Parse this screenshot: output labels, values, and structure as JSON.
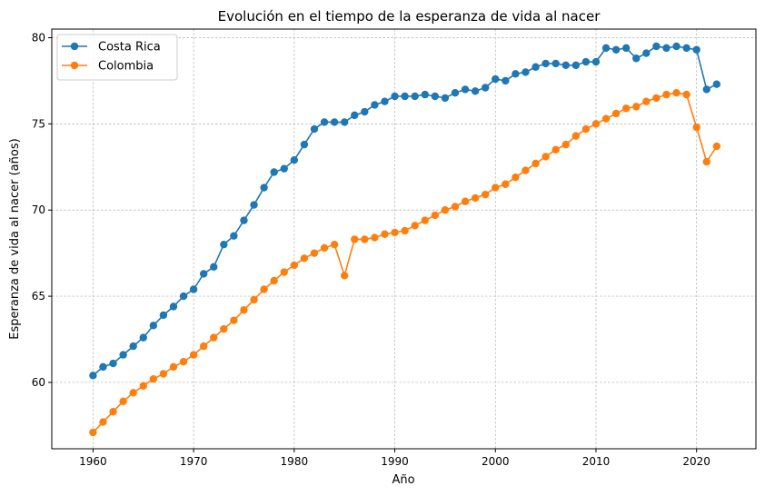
{
  "chart_data": {
    "type": "line",
    "title": "Evolución en el tiempo de la esperanza de vida al nacer",
    "xlabel": "Año",
    "ylabel": "Esperanza de vida al nacer (años)",
    "xlim": [
      1955.9,
      2025.9
    ],
    "ylim": [
      56.15,
      80.5
    ],
    "x_ticks": [
      1960,
      1970,
      1980,
      1990,
      2000,
      2010,
      2020
    ],
    "y_ticks": [
      60,
      65,
      70,
      75,
      80
    ],
    "grid": true,
    "legend_position": "top-left",
    "x": [
      1960,
      1961,
      1962,
      1963,
      1964,
      1965,
      1966,
      1967,
      1968,
      1969,
      1970,
      1971,
      1972,
      1973,
      1974,
      1975,
      1976,
      1977,
      1978,
      1979,
      1980,
      1981,
      1982,
      1983,
      1984,
      1985,
      1986,
      1987,
      1988,
      1989,
      1990,
      1991,
      1992,
      1993,
      1994,
      1995,
      1996,
      1997,
      1998,
      1999,
      2000,
      2001,
      2002,
      2003,
      2004,
      2005,
      2006,
      2007,
      2008,
      2009,
      2010,
      2011,
      2012,
      2013,
      2014,
      2015,
      2016,
      2017,
      2018,
      2019,
      2020,
      2021,
      2022
    ],
    "series": [
      {
        "name": "Costa Rica",
        "color": "#1f77b4",
        "values": [
          60.4,
          60.9,
          61.1,
          61.6,
          62.1,
          62.6,
          63.3,
          63.9,
          64.4,
          65.0,
          65.4,
          66.3,
          66.7,
          68.0,
          68.5,
          69.4,
          70.3,
          71.3,
          72.2,
          72.4,
          72.9,
          73.8,
          74.7,
          75.1,
          75.1,
          75.1,
          75.5,
          75.7,
          76.1,
          76.3,
          76.6,
          76.6,
          76.6,
          76.7,
          76.6,
          76.5,
          76.8,
          77.0,
          76.9,
          77.1,
          77.6,
          77.5,
          77.9,
          78.0,
          78.3,
          78.5,
          78.5,
          78.4,
          78.4,
          78.6,
          78.6,
          79.4,
          79.3,
          79.4,
          78.8,
          79.1,
          79.5,
          79.4,
          79.5,
          79.4,
          79.3,
          77.0,
          77.3
        ]
      },
      {
        "name": "Colombia",
        "color": "#ff7f0e",
        "values": [
          57.1,
          57.7,
          58.3,
          58.9,
          59.4,
          59.8,
          60.2,
          60.5,
          60.9,
          61.2,
          61.6,
          62.1,
          62.6,
          63.1,
          63.6,
          64.2,
          64.8,
          65.4,
          65.9,
          66.4,
          66.8,
          67.2,
          67.5,
          67.8,
          68.0,
          66.2,
          68.3,
          68.3,
          68.4,
          68.6,
          68.7,
          68.8,
          69.1,
          69.4,
          69.7,
          70.0,
          70.2,
          70.5,
          70.7,
          70.9,
          71.3,
          71.5,
          71.9,
          72.3,
          72.7,
          73.1,
          73.5,
          73.8,
          74.3,
          74.7,
          75.0,
          75.3,
          75.6,
          75.9,
          76.0,
          76.3,
          76.5,
          76.7,
          76.8,
          76.7,
          74.8,
          72.8,
          73.7
        ]
      }
    ]
  }
}
